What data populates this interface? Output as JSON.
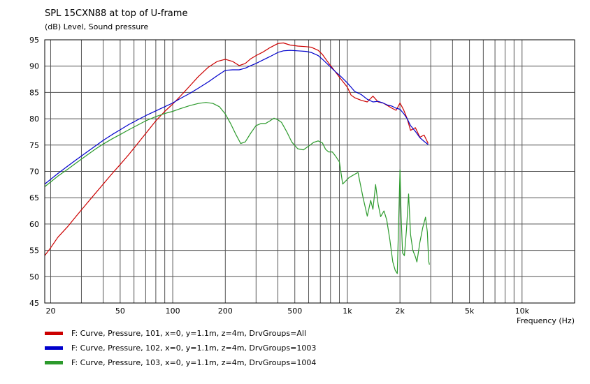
{
  "header": {
    "title": "SPL 15CXN88 at top of U-frame",
    "subtitle": "(dB)  Level, Sound pressure"
  },
  "chart_data": {
    "type": "line",
    "xscale": "log",
    "xlim": [
      18.5,
      20000
    ],
    "ylim": [
      45,
      95
    ],
    "grid": true,
    "xlabel": "Frequency  (Hz)",
    "ylabel": "(dB)  Level, Sound pressure",
    "x_tick_labels": [
      {
        "v": 20,
        "label": "20"
      },
      {
        "v": 50,
        "label": "50"
      },
      {
        "v": 100,
        "label": "100"
      },
      {
        "v": 200,
        "label": "200"
      },
      {
        "v": 500,
        "label": "500"
      },
      {
        "v": 1000,
        "label": "1k"
      },
      {
        "v": 2000,
        "label": "2k"
      },
      {
        "v": 5000,
        "label": "5k"
      },
      {
        "v": 10000,
        "label": "10k"
      }
    ],
    "y_ticks": [
      95,
      90,
      85,
      80,
      75,
      70,
      65,
      60,
      55,
      50,
      45
    ],
    "series": [
      {
        "name": "F: Curve, Pressure, 101, x=0, y=1.1m, z=4m, DrvGroups=All",
        "color": "#cc0000",
        "points": [
          [
            18.5,
            54
          ],
          [
            20,
            55.5
          ],
          [
            22,
            57.5
          ],
          [
            25,
            59.5
          ],
          [
            28,
            61.5
          ],
          [
            32,
            63.8
          ],
          [
            36,
            65.8
          ],
          [
            40,
            67.6
          ],
          [
            45,
            69.6
          ],
          [
            50,
            71.3
          ],
          [
            56,
            73.2
          ],
          [
            63,
            75.3
          ],
          [
            70,
            77.2
          ],
          [
            80,
            79.6
          ],
          [
            90,
            81.4
          ],
          [
            100,
            82.8
          ],
          [
            110,
            84.2
          ],
          [
            125,
            86.2
          ],
          [
            140,
            88
          ],
          [
            160,
            89.8
          ],
          [
            180,
            90.9
          ],
          [
            200,
            91.3
          ],
          [
            220,
            90.9
          ],
          [
            240,
            90.1
          ],
          [
            260,
            90.5
          ],
          [
            280,
            91.4
          ],
          [
            300,
            92
          ],
          [
            330,
            92.7
          ],
          [
            360,
            93.5
          ],
          [
            400,
            94.3
          ],
          [
            430,
            94.4
          ],
          [
            470,
            94
          ],
          [
            520,
            93.8
          ],
          [
            580,
            93.7
          ],
          [
            620,
            93.6
          ],
          [
            680,
            93
          ],
          [
            720,
            92.2
          ],
          [
            780,
            90.6
          ],
          [
            850,
            89
          ],
          [
            920,
            87.5
          ],
          [
            1000,
            86
          ],
          [
            1050,
            84.5
          ],
          [
            1100,
            84
          ],
          [
            1200,
            83.5
          ],
          [
            1300,
            83.2
          ],
          [
            1400,
            84.3
          ],
          [
            1500,
            83.2
          ],
          [
            1600,
            83
          ],
          [
            1700,
            82.5
          ],
          [
            1800,
            82
          ],
          [
            1900,
            81.6
          ],
          [
            2000,
            83
          ],
          [
            2100,
            81.7
          ],
          [
            2200,
            80
          ],
          [
            2300,
            77.8
          ],
          [
            2450,
            78.3
          ],
          [
            2600,
            76.5
          ],
          [
            2750,
            76.9
          ],
          [
            2900,
            75.3
          ]
        ]
      },
      {
        "name": "F: Curve, Pressure, 102, x=0, y=1.1m, z=4m, DrvGroups=1003",
        "color": "#0000cc",
        "points": [
          [
            18.5,
            67.6
          ],
          [
            20,
            68.5
          ],
          [
            22,
            69.6
          ],
          [
            25,
            71
          ],
          [
            28,
            72.2
          ],
          [
            32,
            73.6
          ],
          [
            36,
            74.8
          ],
          [
            40,
            75.9
          ],
          [
            45,
            77
          ],
          [
            50,
            77.9
          ],
          [
            56,
            78.9
          ],
          [
            63,
            79.8
          ],
          [
            70,
            80.6
          ],
          [
            80,
            81.5
          ],
          [
            90,
            82.3
          ],
          [
            100,
            83
          ],
          [
            110,
            83.8
          ],
          [
            125,
            84.8
          ],
          [
            140,
            85.8
          ],
          [
            160,
            87
          ],
          [
            180,
            88.2
          ],
          [
            200,
            89.2
          ],
          [
            220,
            89.3
          ],
          [
            240,
            89.3
          ],
          [
            260,
            89.6
          ],
          [
            280,
            90.1
          ],
          [
            300,
            90.5
          ],
          [
            330,
            91.2
          ],
          [
            360,
            91.8
          ],
          [
            400,
            92.6
          ],
          [
            430,
            92.9
          ],
          [
            470,
            93
          ],
          [
            520,
            92.9
          ],
          [
            580,
            92.8
          ],
          [
            620,
            92.6
          ],
          [
            680,
            92
          ],
          [
            720,
            91.3
          ],
          [
            780,
            90.2
          ],
          [
            850,
            89
          ],
          [
            920,
            88
          ],
          [
            1000,
            86.8
          ],
          [
            1050,
            86
          ],
          [
            1100,
            85.2
          ],
          [
            1200,
            84.6
          ],
          [
            1300,
            83.7
          ],
          [
            1400,
            83.2
          ],
          [
            1500,
            83.3
          ],
          [
            1600,
            83
          ],
          [
            1700,
            82.6
          ],
          [
            1800,
            82.4
          ],
          [
            1900,
            82
          ],
          [
            2000,
            81.8
          ],
          [
            2100,
            81
          ],
          [
            2200,
            80
          ],
          [
            2300,
            78.7
          ],
          [
            2450,
            77.6
          ],
          [
            2600,
            76.4
          ],
          [
            2750,
            75.7
          ],
          [
            2900,
            75.1
          ]
        ]
      },
      {
        "name": "F: Curve, Pressure, 103, x=0, y=1.1m, z=4m, DrvGroups=1004",
        "color": "#2c9a2c",
        "points": [
          [
            18.5,
            67.1
          ],
          [
            20,
            68
          ],
          [
            22,
            69.1
          ],
          [
            25,
            70.4
          ],
          [
            28,
            71.6
          ],
          [
            32,
            73
          ],
          [
            36,
            74.2
          ],
          [
            40,
            75.2
          ],
          [
            45,
            76.2
          ],
          [
            50,
            77
          ],
          [
            56,
            77.9
          ],
          [
            63,
            78.8
          ],
          [
            70,
            79.6
          ],
          [
            80,
            80.4
          ],
          [
            90,
            81
          ],
          [
            100,
            81.4
          ],
          [
            110,
            81.9
          ],
          [
            125,
            82.5
          ],
          [
            140,
            82.9
          ],
          [
            155,
            83.1
          ],
          [
            170,
            82.9
          ],
          [
            185,
            82.3
          ],
          [
            200,
            80.9
          ],
          [
            215,
            79
          ],
          [
            230,
            77
          ],
          [
            245,
            75.3
          ],
          [
            260,
            75.6
          ],
          [
            280,
            77.3
          ],
          [
            300,
            78.7
          ],
          [
            320,
            79.1
          ],
          [
            340,
            79.1
          ],
          [
            360,
            79.6
          ],
          [
            380,
            80.1
          ],
          [
            400,
            79.8
          ],
          [
            420,
            79.3
          ],
          [
            450,
            77.5
          ],
          [
            480,
            75.6
          ],
          [
            520,
            74.3
          ],
          [
            560,
            74.1
          ],
          [
            600,
            74.8
          ],
          [
            640,
            75.5
          ],
          [
            680,
            75.8
          ],
          [
            720,
            75.4
          ],
          [
            750,
            74.2
          ],
          [
            780,
            73.7
          ],
          [
            820,
            73.7
          ],
          [
            860,
            72.8
          ],
          [
            900,
            71.8
          ],
          [
            940,
            67.6
          ],
          [
            980,
            68.2
          ],
          [
            1020,
            68.8
          ],
          [
            1080,
            69.3
          ],
          [
            1150,
            69.8
          ],
          [
            1230,
            65
          ],
          [
            1300,
            61.5
          ],
          [
            1360,
            64.5
          ],
          [
            1400,
            62.8
          ],
          [
            1450,
            67.5
          ],
          [
            1500,
            63.8
          ],
          [
            1550,
            61.4
          ],
          [
            1620,
            62.5
          ],
          [
            1680,
            60.8
          ],
          [
            1750,
            57
          ],
          [
            1820,
            52.8
          ],
          [
            1880,
            51.2
          ],
          [
            1930,
            50.6
          ],
          [
            1960,
            59
          ],
          [
            2000,
            70.3
          ],
          [
            2030,
            61.5
          ],
          [
            2070,
            54.5
          ],
          [
            2120,
            54
          ],
          [
            2180,
            59
          ],
          [
            2240,
            65.7
          ],
          [
            2300,
            58
          ],
          [
            2370,
            55
          ],
          [
            2450,
            53.8
          ],
          [
            2500,
            52.8
          ],
          [
            2600,
            56.5
          ],
          [
            2700,
            59.3
          ],
          [
            2800,
            61.3
          ],
          [
            2870,
            58.5
          ],
          [
            2920,
            53
          ],
          [
            2950,
            52.3
          ]
        ]
      }
    ],
    "legend": {
      "position": "bottom-left"
    }
  }
}
